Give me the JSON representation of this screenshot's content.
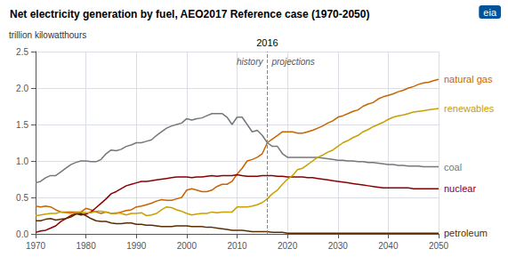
{
  "chart_data": {
    "type": "line",
    "title": "Net electricity generation by fuel, AEO2017 Reference case (1970-2050)",
    "ylabel": "trillion kilowatthours",
    "xlim": [
      1970,
      2050
    ],
    "ylim": [
      0,
      2.5
    ],
    "xticks": [
      1970,
      1980,
      1990,
      2000,
      2010,
      2020,
      2030,
      2040,
      2050
    ],
    "yticks": [
      {
        "value": 0,
        "label": "0.0"
      },
      0.5,
      {
        "value": 1,
        "label": "1.0"
      },
      1.5,
      {
        "value": 2,
        "label": "2.0"
      },
      2.5
    ],
    "grid": true,
    "divider": {
      "x": 2016,
      "label": "2016"
    },
    "annotations": [
      "history",
      "projections"
    ],
    "logo": "eia",
    "x": [
      1970,
      1971,
      1972,
      1973,
      1974,
      1975,
      1976,
      1977,
      1978,
      1979,
      1980,
      1981,
      1982,
      1983,
      1984,
      1985,
      1986,
      1987,
      1988,
      1989,
      1990,
      1991,
      1992,
      1993,
      1994,
      1995,
      1996,
      1997,
      1998,
      1999,
      2000,
      2001,
      2002,
      2003,
      2004,
      2005,
      2006,
      2007,
      2008,
      2009,
      2010,
      2011,
      2012,
      2013,
      2014,
      2015,
      2016,
      2017,
      2018,
      2019,
      2020,
      2021,
      2022,
      2023,
      2024,
      2025,
      2026,
      2027,
      2028,
      2029,
      2030,
      2031,
      2032,
      2033,
      2034,
      2035,
      2036,
      2037,
      2038,
      2039,
      2040,
      2041,
      2042,
      2043,
      2044,
      2045,
      2046,
      2047,
      2048,
      2049,
      2050
    ],
    "series": [
      {
        "name": "coal",
        "color": "#777777",
        "values": [
          0.7,
          0.72,
          0.77,
          0.8,
          0.8,
          0.85,
          0.9,
          0.95,
          0.98,
          1.0,
          1.0,
          0.99,
          0.99,
          1.02,
          1.1,
          1.15,
          1.14,
          1.16,
          1.2,
          1.22,
          1.25,
          1.25,
          1.27,
          1.29,
          1.35,
          1.4,
          1.45,
          1.48,
          1.5,
          1.52,
          1.58,
          1.56,
          1.58,
          1.59,
          1.62,
          1.65,
          1.65,
          1.65,
          1.6,
          1.5,
          1.6,
          1.6,
          1.5,
          1.4,
          1.42,
          1.35,
          1.25,
          1.2,
          1.2,
          1.1,
          1.05,
          1.05,
          1.05,
          1.05,
          1.05,
          1.05,
          1.05,
          1.04,
          1.03,
          1.02,
          1.01,
          1.01,
          1.0,
          1.0,
          0.99,
          0.99,
          0.98,
          0.98,
          0.97,
          0.96,
          0.95,
          0.95,
          0.94,
          0.94,
          0.93,
          0.93,
          0.93,
          0.92,
          0.92,
          0.92,
          0.92
        ]
      },
      {
        "name": "natural gas",
        "color": "#c86400",
        "values": [
          0.38,
          0.37,
          0.38,
          0.37,
          0.33,
          0.3,
          0.3,
          0.3,
          0.3,
          0.3,
          0.35,
          0.33,
          0.3,
          0.28,
          0.3,
          0.28,
          0.28,
          0.3,
          0.32,
          0.33,
          0.37,
          0.38,
          0.4,
          0.42,
          0.45,
          0.47,
          0.46,
          0.46,
          0.48,
          0.5,
          0.6,
          0.62,
          0.6,
          0.58,
          0.58,
          0.6,
          0.65,
          0.68,
          0.68,
          0.72,
          0.82,
          0.9,
          1.0,
          1.02,
          1.05,
          1.1,
          1.25,
          1.3,
          1.35,
          1.4,
          1.4,
          1.4,
          1.38,
          1.38,
          1.4,
          1.42,
          1.45,
          1.48,
          1.52,
          1.55,
          1.6,
          1.62,
          1.65,
          1.68,
          1.7,
          1.75,
          1.78,
          1.8,
          1.85,
          1.88,
          1.9,
          1.92,
          1.95,
          1.97,
          2.0,
          2.02,
          2.05,
          2.07,
          2.08,
          2.1,
          2.12
        ]
      },
      {
        "name": "nuclear",
        "color": "#8b0000",
        "values": [
          0.02,
          0.04,
          0.05,
          0.08,
          0.11,
          0.17,
          0.21,
          0.25,
          0.28,
          0.26,
          0.27,
          0.3,
          0.36,
          0.42,
          0.48,
          0.55,
          0.58,
          0.62,
          0.66,
          0.68,
          0.7,
          0.72,
          0.72,
          0.73,
          0.74,
          0.75,
          0.76,
          0.77,
          0.78,
          0.78,
          0.78,
          0.77,
          0.78,
          0.78,
          0.79,
          0.8,
          0.79,
          0.8,
          0.8,
          0.8,
          0.81,
          0.8,
          0.79,
          0.79,
          0.79,
          0.8,
          0.8,
          0.8,
          0.79,
          0.79,
          0.78,
          0.78,
          0.78,
          0.78,
          0.77,
          0.77,
          0.76,
          0.75,
          0.74,
          0.73,
          0.72,
          0.71,
          0.7,
          0.69,
          0.68,
          0.67,
          0.66,
          0.65,
          0.64,
          0.63,
          0.63,
          0.63,
          0.63,
          0.63,
          0.63,
          0.62,
          0.62,
          0.62,
          0.62,
          0.62,
          0.62
        ]
      },
      {
        "name": "renewables",
        "color": "#c8a000",
        "values": [
          0.25,
          0.26,
          0.27,
          0.28,
          0.28,
          0.3,
          0.29,
          0.28,
          0.29,
          0.3,
          0.29,
          0.29,
          0.31,
          0.31,
          0.3,
          0.28,
          0.29,
          0.28,
          0.26,
          0.28,
          0.28,
          0.29,
          0.25,
          0.26,
          0.28,
          0.33,
          0.37,
          0.36,
          0.33,
          0.31,
          0.28,
          0.26,
          0.27,
          0.28,
          0.28,
          0.3,
          0.29,
          0.3,
          0.3,
          0.3,
          0.37,
          0.37,
          0.37,
          0.38,
          0.4,
          0.43,
          0.48,
          0.55,
          0.6,
          0.68,
          0.75,
          0.8,
          0.88,
          0.9,
          0.95,
          1.0,
          1.05,
          1.08,
          1.12,
          1.15,
          1.2,
          1.25,
          1.28,
          1.32,
          1.35,
          1.4,
          1.43,
          1.47,
          1.5,
          1.53,
          1.57,
          1.6,
          1.62,
          1.63,
          1.65,
          1.67,
          1.68,
          1.69,
          1.7,
          1.71,
          1.72
        ]
      },
      {
        "name": "petroleum",
        "color": "#5a2d00",
        "values": [
          0.18,
          0.18,
          0.2,
          0.21,
          0.19,
          0.2,
          0.21,
          0.23,
          0.27,
          0.28,
          0.25,
          0.21,
          0.18,
          0.17,
          0.17,
          0.15,
          0.14,
          0.14,
          0.15,
          0.15,
          0.13,
          0.13,
          0.12,
          0.12,
          0.11,
          0.1,
          0.1,
          0.1,
          0.11,
          0.11,
          0.11,
          0.1,
          0.1,
          0.1,
          0.09,
          0.09,
          0.08,
          0.07,
          0.06,
          0.05,
          0.05,
          0.05,
          0.04,
          0.03,
          0.03,
          0.03,
          0.03,
          0.02,
          0.02,
          0.02,
          0.01,
          0.01,
          0.01,
          0.01,
          0.01,
          0.01,
          0.01,
          0.01,
          0.01,
          0.01,
          0.01,
          0.01,
          0.01,
          0.01,
          0.01,
          0.01,
          0.01,
          0.01,
          0.01,
          0.01,
          0.01,
          0.01,
          0.01,
          0.01,
          0.01,
          0.01,
          0.01,
          0.01,
          0.01,
          0.01,
          0.01
        ]
      }
    ]
  }
}
